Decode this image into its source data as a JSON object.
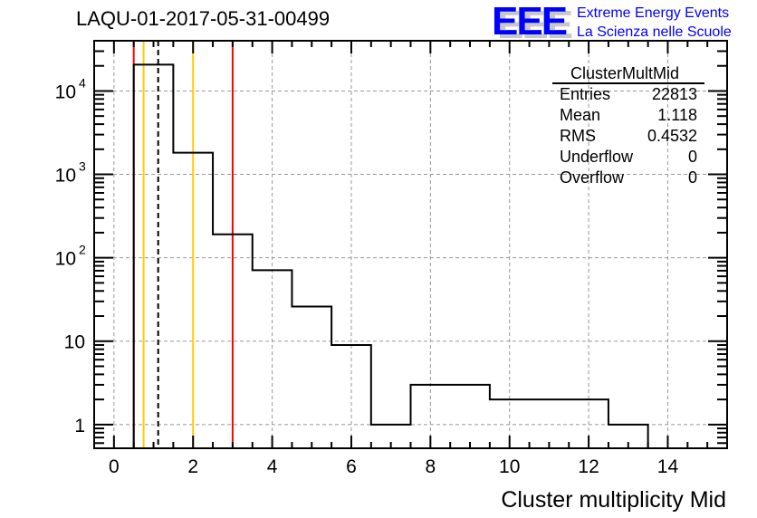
{
  "chart_data": {
    "type": "bar",
    "style": "step-histogram",
    "title": "LAQU-01-2017-05-31-00499",
    "xlabel": "Cluster multiplicity Mid",
    "ylabel": "",
    "xlim": [
      -0.5,
      15.5
    ],
    "ylim": [
      0.52,
      40000
    ],
    "yscale": "log",
    "grid": true,
    "x_ticks": [
      0,
      2,
      4,
      6,
      8,
      10,
      12,
      14
    ],
    "y_ticks": [
      {
        "v": 1,
        "label": "1"
      },
      {
        "v": 10,
        "label": "10"
      },
      {
        "v": 100,
        "label": "10",
        "exp": "2"
      },
      {
        "v": 1000,
        "label": "10",
        "exp": "3"
      },
      {
        "v": 10000,
        "label": "10",
        "exp": "4"
      }
    ],
    "bins": {
      "edges": [
        0.5,
        1.5,
        2.5,
        3.5,
        4.5,
        5.5,
        6.5,
        7.5,
        8.5,
        9.5,
        10.5,
        11.5,
        12.5,
        13.5
      ],
      "values": [
        20680,
        1820,
        191,
        71,
        26,
        9,
        1,
        3,
        3,
        2,
        2,
        2,
        1
      ]
    },
    "vertical_lines": [
      {
        "x": 0.5,
        "color": "#ff0000",
        "style": "solid"
      },
      {
        "x": 3,
        "color": "#ff0000",
        "style": "solid"
      },
      {
        "x": 0.75,
        "color": "#ffcc00",
        "style": "solid"
      },
      {
        "x": 2,
        "color": "#ffcc00",
        "style": "solid"
      },
      {
        "x": 1.118,
        "color": "#000000",
        "style": "dashed"
      }
    ],
    "stats": {
      "name": "ClusterMultMid",
      "rows": [
        {
          "label": "Entries",
          "value": "22813"
        },
        {
          "label": "Mean",
          "value": "1.118"
        },
        {
          "label": "RMS",
          "value": "0.4532"
        },
        {
          "label": "Underflow",
          "value": "0"
        },
        {
          "label": "Overflow",
          "value": "0"
        }
      ]
    }
  },
  "logo": {
    "letters": "EEE",
    "line1": "Extreme Energy Events",
    "line2": "La Scienza nelle Scuole",
    "color": "#0000ff"
  }
}
